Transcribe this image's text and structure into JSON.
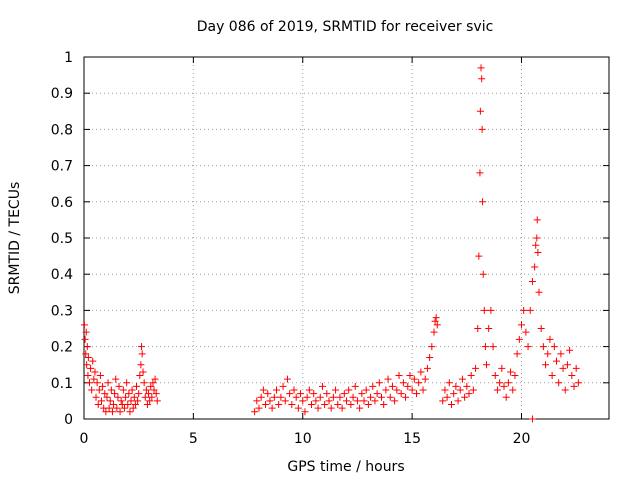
{
  "chart_data": {
    "type": "scatter",
    "title": "Day 086 of 2019, SRMTID for receiver svic",
    "xlabel": "GPS time / hours",
    "ylabel": "SRMTID / TECUs",
    "xlim": [
      0,
      24
    ],
    "ylim": [
      0,
      1
    ],
    "x_ticks": [
      0,
      5,
      10,
      15,
      20
    ],
    "x_tick_labels": [
      "0",
      "5",
      "10",
      "15",
      "20"
    ],
    "y_ticks": [
      0,
      0.1,
      0.2,
      0.3,
      0.4,
      0.5,
      0.6,
      0.7,
      0.8,
      0.9,
      1
    ],
    "y_tick_labels": [
      "0",
      "0.1",
      "0.2",
      "0.3",
      "0.4",
      "0.5",
      "0.6",
      "0.7",
      "0.8",
      "0.9",
      "1"
    ],
    "grid": true,
    "marker": "+",
    "series": [
      {
        "name": "SRMTID",
        "color": "#ff0000",
        "points": [
          [
            0.02,
            0.26
          ],
          [
            0.05,
            0.22
          ],
          [
            0.08,
            0.18
          ],
          [
            0.1,
            0.24
          ],
          [
            0.12,
            0.15
          ],
          [
            0.15,
            0.2
          ],
          [
            0.18,
            0.12
          ],
          [
            0.2,
            0.17
          ],
          [
            0.25,
            0.1
          ],
          [
            0.3,
            0.14
          ],
          [
            0.35,
            0.08
          ],
          [
            0.4,
            0.16
          ],
          [
            0.45,
            0.11
          ],
          [
            0.5,
            0.13
          ],
          [
            0.55,
            0.06
          ],
          [
            0.6,
            0.1
          ],
          [
            0.65,
            0.04
          ],
          [
            0.7,
            0.08
          ],
          [
            0.75,
            0.12
          ],
          [
            0.8,
            0.05
          ],
          [
            0.85,
            0.09
          ],
          [
            0.9,
            0.03
          ],
          [
            0.95,
            0.07
          ],
          [
            1.0,
            0.02
          ],
          [
            1.05,
            0.06
          ],
          [
            1.1,
            0.1
          ],
          [
            1.15,
            0.03
          ],
          [
            1.2,
            0.05
          ],
          [
            1.25,
            0.08
          ],
          [
            1.3,
            0.02
          ],
          [
            1.35,
            0.04
          ],
          [
            1.4,
            0.07
          ],
          [
            1.45,
            0.11
          ],
          [
            1.5,
            0.03
          ],
          [
            1.55,
            0.06
          ],
          [
            1.6,
            0.09
          ],
          [
            1.65,
            0.02
          ],
          [
            1.7,
            0.05
          ],
          [
            1.75,
            0.04
          ],
          [
            1.8,
            0.08
          ],
          [
            1.85,
            0.03
          ],
          [
            1.9,
            0.06
          ],
          [
            1.95,
            0.1
          ],
          [
            2.0,
            0.04
          ],
          [
            2.05,
            0.07
          ],
          [
            2.1,
            0.02
          ],
          [
            2.15,
            0.05
          ],
          [
            2.2,
            0.08
          ],
          [
            2.25,
            0.03
          ],
          [
            2.3,
            0.06
          ],
          [
            2.35,
            0.04
          ],
          [
            2.4,
            0.09
          ],
          [
            2.45,
            0.05
          ],
          [
            2.5,
            0.07
          ],
          [
            2.55,
            0.12
          ],
          [
            2.6,
            0.15
          ],
          [
            2.63,
            0.2
          ],
          [
            2.66,
            0.18
          ],
          [
            2.7,
            0.13
          ],
          [
            2.75,
            0.1
          ],
          [
            2.8,
            0.06
          ],
          [
            2.85,
            0.08
          ],
          [
            2.9,
            0.04
          ],
          [
            2.95,
            0.07
          ],
          [
            3.0,
            0.05
          ],
          [
            3.05,
            0.09
          ],
          [
            3.1,
            0.06
          ],
          [
            3.15,
            0.1
          ],
          [
            3.2,
            0.08
          ],
          [
            3.25,
            0.11
          ],
          [
            3.3,
            0.07
          ],
          [
            3.35,
            0.05
          ],
          [
            7.8,
            0.02
          ],
          [
            7.9,
            0.05
          ],
          [
            8.0,
            0.03
          ],
          [
            8.1,
            0.06
          ],
          [
            8.2,
            0.08
          ],
          [
            8.3,
            0.04
          ],
          [
            8.4,
            0.07
          ],
          [
            8.5,
            0.05
          ],
          [
            8.6,
            0.03
          ],
          [
            8.7,
            0.06
          ],
          [
            8.8,
            0.08
          ],
          [
            8.9,
            0.04
          ],
          [
            9.0,
            0.06
          ],
          [
            9.1,
            0.09
          ],
          [
            9.2,
            0.05
          ],
          [
            9.3,
            0.11
          ],
          [
            9.4,
            0.07
          ],
          [
            9.5,
            0.04
          ],
          [
            9.6,
            0.08
          ],
          [
            9.7,
            0.06
          ],
          [
            9.8,
            0.03
          ],
          [
            9.9,
            0.07
          ],
          [
            10.0,
            0.05
          ],
          [
            10.1,
            0.02
          ],
          [
            10.2,
            0.06
          ],
          [
            10.3,
            0.08
          ],
          [
            10.4,
            0.04
          ],
          [
            10.5,
            0.07
          ],
          [
            10.6,
            0.05
          ],
          [
            10.7,
            0.03
          ],
          [
            10.8,
            0.06
          ],
          [
            10.9,
            0.09
          ],
          [
            11.0,
            0.04
          ],
          [
            11.1,
            0.07
          ],
          [
            11.2,
            0.05
          ],
          [
            11.3,
            0.03
          ],
          [
            11.4,
            0.06
          ],
          [
            11.5,
            0.08
          ],
          [
            11.6,
            0.04
          ],
          [
            11.7,
            0.06
          ],
          [
            11.8,
            0.03
          ],
          [
            11.9,
            0.07
          ],
          [
            12.0,
            0.05
          ],
          [
            12.1,
            0.08
          ],
          [
            12.2,
            0.04
          ],
          [
            12.3,
            0.06
          ],
          [
            12.4,
            0.09
          ],
          [
            12.5,
            0.05
          ],
          [
            12.6,
            0.03
          ],
          [
            12.7,
            0.07
          ],
          [
            12.8,
            0.05
          ],
          [
            12.9,
            0.08
          ],
          [
            13.0,
            0.04
          ],
          [
            13.1,
            0.06
          ],
          [
            13.2,
            0.09
          ],
          [
            13.3,
            0.05
          ],
          [
            13.4,
            0.07
          ],
          [
            13.5,
            0.1
          ],
          [
            13.6,
            0.06
          ],
          [
            13.7,
            0.04
          ],
          [
            13.8,
            0.08
          ],
          [
            13.9,
            0.11
          ],
          [
            14.0,
            0.06
          ],
          [
            14.1,
            0.09
          ],
          [
            14.2,
            0.05
          ],
          [
            14.3,
            0.08
          ],
          [
            14.4,
            0.12
          ],
          [
            14.5,
            0.07
          ],
          [
            14.6,
            0.1
          ],
          [
            14.7,
            0.06
          ],
          [
            14.8,
            0.09
          ],
          [
            14.9,
            0.12
          ],
          [
            15.0,
            0.08
          ],
          [
            15.1,
            0.11
          ],
          [
            15.2,
            0.07
          ],
          [
            15.3,
            0.1
          ],
          [
            15.4,
            0.13
          ],
          [
            15.5,
            0.08
          ],
          [
            15.6,
            0.11
          ],
          [
            15.7,
            0.14
          ],
          [
            15.8,
            0.17
          ],
          [
            15.9,
            0.2
          ],
          [
            16.0,
            0.24
          ],
          [
            16.05,
            0.27
          ],
          [
            16.1,
            0.28
          ],
          [
            16.15,
            0.26
          ],
          [
            16.4,
            0.05
          ],
          [
            16.5,
            0.08
          ],
          [
            16.6,
            0.06
          ],
          [
            16.7,
            0.1
          ],
          [
            16.8,
            0.04
          ],
          [
            16.9,
            0.07
          ],
          [
            17.0,
            0.09
          ],
          [
            17.1,
            0.05
          ],
          [
            17.2,
            0.08
          ],
          [
            17.3,
            0.11
          ],
          [
            17.4,
            0.06
          ],
          [
            17.5,
            0.09
          ],
          [
            17.6,
            0.07
          ],
          [
            17.7,
            0.12
          ],
          [
            17.8,
            0.08
          ],
          [
            17.9,
            0.14
          ],
          [
            18.0,
            0.25
          ],
          [
            18.05,
            0.45
          ],
          [
            18.1,
            0.68
          ],
          [
            18.12,
            0.85
          ],
          [
            18.15,
            0.97
          ],
          [
            18.18,
            0.94
          ],
          [
            18.2,
            0.8
          ],
          [
            18.22,
            0.6
          ],
          [
            18.25,
            0.4
          ],
          [
            18.3,
            0.3
          ],
          [
            18.35,
            0.2
          ],
          [
            18.4,
            0.15
          ],
          [
            18.5,
            0.25
          ],
          [
            18.6,
            0.3
          ],
          [
            18.7,
            0.2
          ],
          [
            18.8,
            0.12
          ],
          [
            18.9,
            0.08
          ],
          [
            19.0,
            0.1
          ],
          [
            19.1,
            0.14
          ],
          [
            19.2,
            0.09
          ],
          [
            19.3,
            0.06
          ],
          [
            19.4,
            0.1
          ],
          [
            19.5,
            0.13
          ],
          [
            19.6,
            0.08
          ],
          [
            19.7,
            0.12
          ],
          [
            19.8,
            0.18
          ],
          [
            19.9,
            0.22
          ],
          [
            20.0,
            0.26
          ],
          [
            20.1,
            0.3
          ],
          [
            20.2,
            0.24
          ],
          [
            20.3,
            0.2
          ],
          [
            20.4,
            0.3
          ],
          [
            20.5,
            0.38
          ],
          [
            20.6,
            0.42
          ],
          [
            20.65,
            0.48
          ],
          [
            20.7,
            0.5
          ],
          [
            20.72,
            0.55
          ],
          [
            20.75,
            0.46
          ],
          [
            20.8,
            0.35
          ],
          [
            20.9,
            0.25
          ],
          [
            21.0,
            0.2
          ],
          [
            21.1,
            0.15
          ],
          [
            21.2,
            0.18
          ],
          [
            21.3,
            0.22
          ],
          [
            21.4,
            0.12
          ],
          [
            21.5,
            0.2
          ],
          [
            21.6,
            0.16
          ],
          [
            21.7,
            0.1
          ],
          [
            21.8,
            0.18
          ],
          [
            21.9,
            0.14
          ],
          [
            22.0,
            0.08
          ],
          [
            22.1,
            0.15
          ],
          [
            22.2,
            0.19
          ],
          [
            22.3,
            0.12
          ],
          [
            22.4,
            0.09
          ],
          [
            22.5,
            0.14
          ],
          [
            22.6,
            0.1
          ],
          [
            20.5,
            0.0
          ]
        ]
      }
    ]
  }
}
